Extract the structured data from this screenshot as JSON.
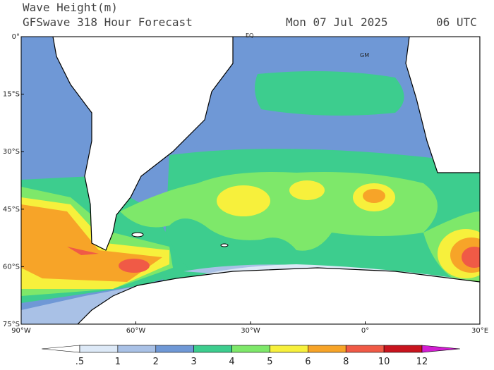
{
  "header": {
    "title": "Wave Height(m)",
    "subtitle": "GFSwave 318 Hour Forecast",
    "date": "Mon 07 Jul 2025",
    "time": "06 UTC"
  },
  "map": {
    "lat_labels": [
      "0°",
      "15°S",
      "30°S",
      "45°S",
      "60°S",
      "75°S"
    ],
    "lon_labels": [
      "90°W",
      "60°W",
      "30°W",
      "0°",
      "30°E"
    ],
    "place_labels": [
      "EQ",
      "GM"
    ]
  },
  "colorbar": {
    "labels": [
      ".5",
      "1",
      "2",
      "3",
      "4",
      "5",
      "6",
      "8",
      "10",
      "12"
    ],
    "colors": [
      "#ffffff",
      "#dde9f7",
      "#a9c1e6",
      "#6f98d6",
      "#3dcd8e",
      "#7ee86a",
      "#f7f03c",
      "#f7a428",
      "#f05a46",
      "#c8141e",
      "#d21ed2"
    ]
  }
}
